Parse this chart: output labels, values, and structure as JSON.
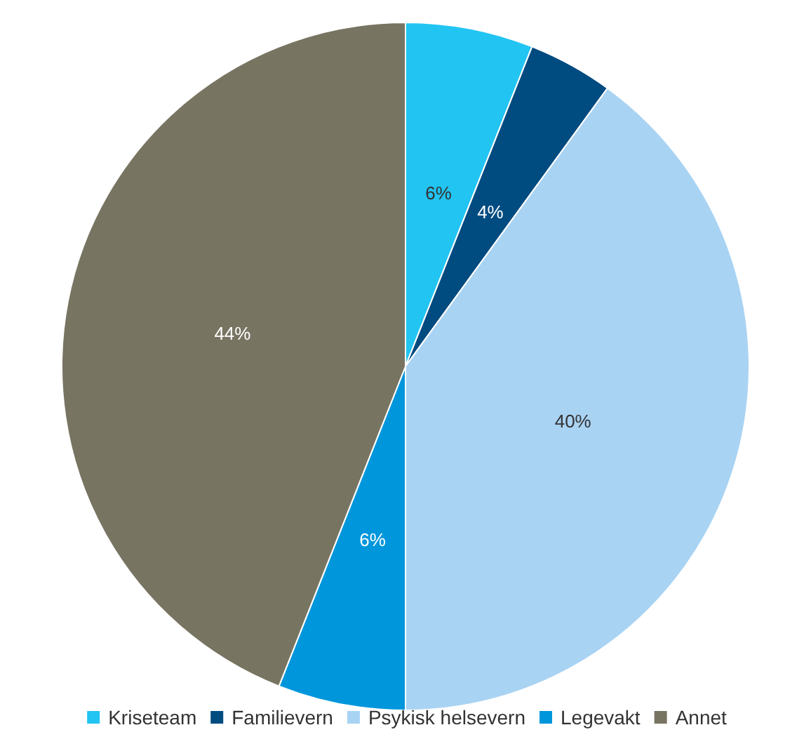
{
  "chart_data": {
    "type": "pie",
    "categories": [
      "Kriseteam",
      "Familievern",
      "Psykisk helsevern",
      "Legevakt",
      "Annet"
    ],
    "values": [
      6,
      4,
      40,
      6,
      44
    ],
    "colors": [
      "#22c4f2",
      "#004b80",
      "#a9d3f3",
      "#0096dc",
      "#787462"
    ],
    "value_labels": [
      "6%",
      "4%",
      "40%",
      "6%",
      "44%"
    ],
    "legend": "bottom"
  }
}
